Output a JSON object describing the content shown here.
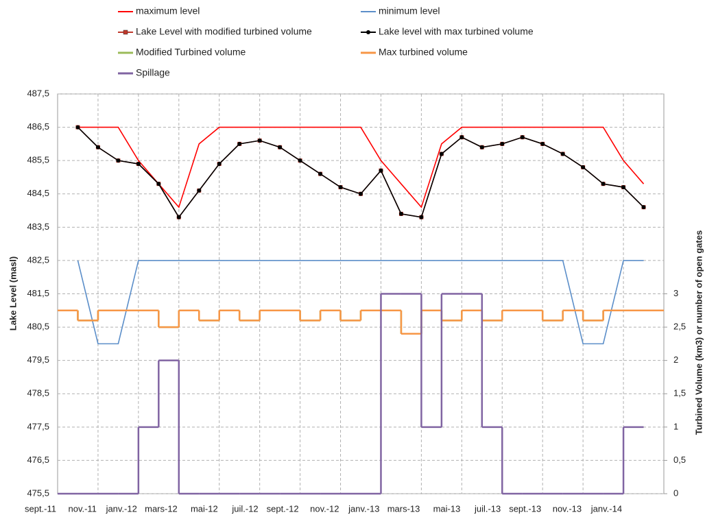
{
  "chart_data": {
    "type": "line",
    "y_label": "Lake Level (masl)",
    "y2_label": "Turbined Volume (km3) or number of open gates",
    "categories": [
      "sept.-11",
      null,
      "nov.-11",
      null,
      "janv.-12",
      null,
      "mars-12",
      null,
      "mai-12",
      null,
      "juil.-12",
      null,
      "sept.-12",
      null,
      "nov.-12",
      null,
      "janv.-13",
      null,
      "mars-13",
      null,
      "mai-13",
      null,
      "juil.-13",
      null,
      "sept.-13",
      null,
      "nov.-13",
      null,
      "janv.-14",
      null
    ],
    "ylim": [
      475.5,
      487.5
    ],
    "yticks": [
      {
        "value": 475.5,
        "label": "475,5"
      },
      {
        "value": 476.5,
        "label": "476,5"
      },
      {
        "value": 477.5,
        "label": "477,5"
      },
      {
        "value": 478.5,
        "label": "478,5"
      },
      {
        "value": 479.5,
        "label": "479,5"
      },
      {
        "value": 480.5,
        "label": "480,5"
      },
      {
        "value": 481.5,
        "label": "481,5"
      },
      {
        "value": 482.5,
        "label": "482,5"
      },
      {
        "value": 483.5,
        "label": "483,5"
      },
      {
        "value": 484.5,
        "label": "484,5"
      },
      {
        "value": 485.5,
        "label": "485,5"
      },
      {
        "value": 486.5,
        "label": "486,5"
      },
      {
        "value": 487.5,
        "label": "487,5"
      }
    ],
    "y2lim": [
      0,
      6
    ],
    "y2ticks": [
      0,
      {
        "value": 0.5,
        "label": "0,5"
      },
      1,
      {
        "value": 1.5,
        "label": "1,5"
      },
      2,
      {
        "value": 2.5,
        "label": "2,5"
      },
      3
    ],
    "grid": true,
    "series": [
      {
        "name": "maximum level",
        "color": "#ff0000",
        "style": "line",
        "marker": null,
        "values": [
          null,
          486.5,
          486.5,
          486.5,
          485.5,
          484.8,
          484.1,
          486.0,
          486.5,
          486.5,
          486.5,
          486.5,
          486.5,
          486.5,
          486.5,
          486.5,
          485.5,
          484.8,
          484.1,
          486.0,
          486.5,
          486.5,
          486.5,
          486.5,
          486.5,
          486.5,
          486.5,
          486.5,
          485.5,
          484.8
        ]
      },
      {
        "name": "minimum level",
        "color": "#5b8ec9",
        "style": "line",
        "marker": null,
        "values": [
          null,
          482.5,
          480.0,
          480.0,
          482.5,
          482.5,
          482.5,
          482.5,
          482.5,
          482.5,
          482.5,
          482.5,
          482.5,
          482.5,
          482.5,
          482.5,
          482.5,
          482.5,
          482.5,
          482.5,
          482.5,
          482.5,
          482.5,
          482.5,
          482.5,
          482.5,
          480.0,
          480.0,
          482.5,
          482.5
        ]
      },
      {
        "name": "Lake Level with modified turbined volume",
        "color": "#c0392b",
        "style": "line",
        "marker": "square",
        "values": [
          null,
          486.5,
          485.9,
          485.5,
          485.4,
          484.8,
          483.8,
          484.6,
          485.4,
          486.0,
          486.1,
          485.9,
          485.5,
          485.1,
          484.7,
          484.5,
          485.2,
          483.9,
          483.8,
          485.7,
          486.2,
          485.9,
          486.0,
          486.2,
          486.0,
          485.7,
          485.3,
          484.8,
          484.7,
          484.1
        ]
      },
      {
        "name": "Lake level with max turbined volume",
        "color": "#000000",
        "style": "line",
        "marker": "circle",
        "values": [
          null,
          486.5,
          485.9,
          485.5,
          485.4,
          484.8,
          483.8,
          484.6,
          485.4,
          486.0,
          486.1,
          485.9,
          485.5,
          485.1,
          484.7,
          484.5,
          485.2,
          483.9,
          483.8,
          485.7,
          486.2,
          485.9,
          486.0,
          486.2,
          486.0,
          485.7,
          485.3,
          484.8,
          484.7,
          484.1
        ]
      },
      {
        "name": "Modified Turbined volume",
        "color": "#9bbb59",
        "style": "step",
        "marker": null,
        "axis": "y2",
        "values": [
          2.75,
          2.6,
          2.75,
          2.75,
          2.75,
          2.5,
          2.75,
          2.6,
          2.75,
          2.6,
          2.75,
          2.75,
          2.6,
          2.75,
          2.6,
          2.75,
          2.75,
          2.4,
          2.75,
          2.6,
          2.75,
          2.6,
          2.75,
          2.75,
          2.6,
          2.75,
          2.6,
          2.75,
          2.75,
          2.75
        ]
      },
      {
        "name": "Max turbined volume",
        "color": "#f79646",
        "style": "step",
        "marker": null,
        "axis": "y2",
        "values": [
          2.75,
          2.6,
          2.75,
          2.75,
          2.75,
          2.5,
          2.75,
          2.6,
          2.75,
          2.6,
          2.75,
          2.75,
          2.6,
          2.75,
          2.6,
          2.75,
          2.75,
          2.4,
          2.75,
          2.6,
          2.75,
          2.6,
          2.75,
          2.75,
          2.6,
          2.75,
          2.6,
          2.75,
          2.75,
          2.75
        ]
      },
      {
        "name": "Spillage",
        "color": "#8064a2",
        "style": "step",
        "marker": null,
        "axis": "y2",
        "values": [
          0,
          0,
          0,
          0,
          1,
          2,
          0,
          0,
          0,
          0,
          0,
          0,
          0,
          0,
          0,
          0,
          3,
          3,
          1,
          3,
          3,
          1,
          0,
          0,
          0,
          0,
          0,
          0,
          1,
          null
        ]
      }
    ]
  }
}
